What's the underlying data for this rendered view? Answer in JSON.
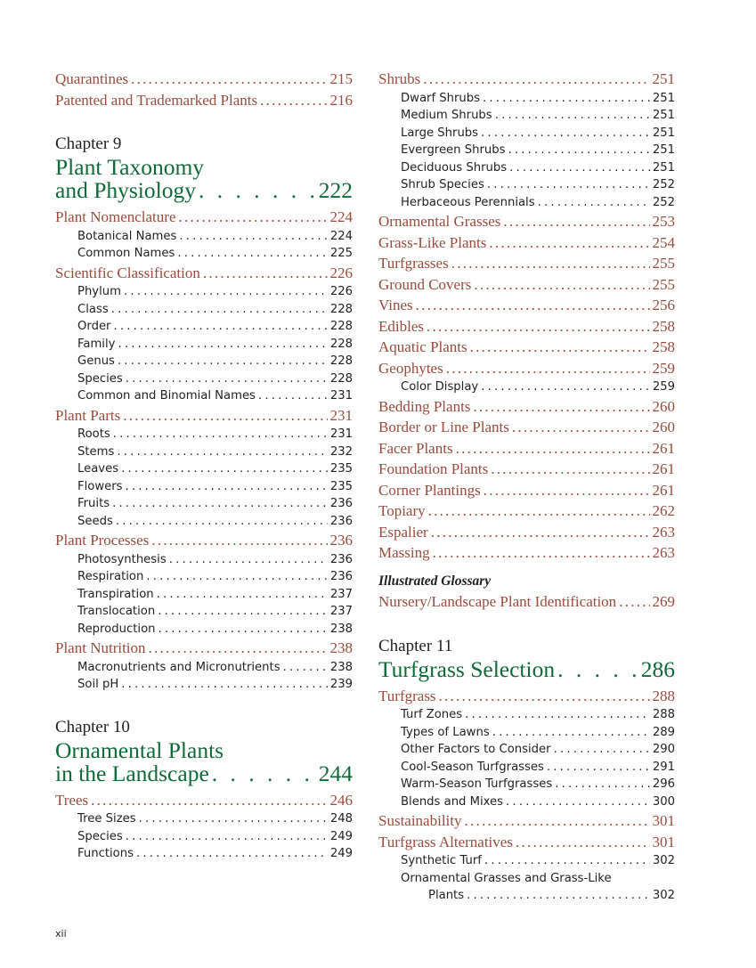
{
  "left": [
    {
      "type": "section",
      "label": "Quarantines",
      "page": "215"
    },
    {
      "type": "section",
      "label": "Patented and Trademarked Plants",
      "page": "216"
    },
    {
      "type": "chap-label",
      "label": "Chapter 9"
    },
    {
      "type": "chap-title",
      "label": "Plant Taxonomy"
    },
    {
      "type": "chap-title-last",
      "label": "and Physiology",
      "page": "222"
    },
    {
      "type": "section",
      "label": "Plant Nomenclature",
      "page": "224"
    },
    {
      "type": "sub",
      "label": "Botanical Names",
      "page": "224"
    },
    {
      "type": "sub",
      "label": "Common Names",
      "page": "225"
    },
    {
      "type": "section",
      "label": "Scientific Classification",
      "page": "226"
    },
    {
      "type": "sub",
      "label": "Phylum",
      "page": "226"
    },
    {
      "type": "sub",
      "label": "Class",
      "page": "228"
    },
    {
      "type": "sub",
      "label": "Order",
      "page": "228"
    },
    {
      "type": "sub",
      "label": "Family",
      "page": "228"
    },
    {
      "type": "sub",
      "label": "Genus",
      "page": "228"
    },
    {
      "type": "sub",
      "label": "Species",
      "page": "228"
    },
    {
      "type": "sub",
      "label": "Common and Binomial Names",
      "page": "231"
    },
    {
      "type": "section",
      "label": "Plant Parts",
      "page": "231"
    },
    {
      "type": "sub",
      "label": "Roots",
      "page": "231"
    },
    {
      "type": "sub",
      "label": "Stems",
      "page": "232"
    },
    {
      "type": "sub",
      "label": "Leaves",
      "page": "235"
    },
    {
      "type": "sub",
      "label": "Flowers",
      "page": "235"
    },
    {
      "type": "sub",
      "label": "Fruits",
      "page": "236"
    },
    {
      "type": "sub",
      "label": "Seeds",
      "page": "236"
    },
    {
      "type": "section",
      "label": "Plant Processes",
      "page": "236"
    },
    {
      "type": "sub",
      "label": "Photosynthesis",
      "page": "236"
    },
    {
      "type": "sub",
      "label": "Respiration",
      "page": "236"
    },
    {
      "type": "sub",
      "label": "Transpiration",
      "page": "237"
    },
    {
      "type": "sub",
      "label": "Translocation",
      "page": "237"
    },
    {
      "type": "sub",
      "label": "Reproduction",
      "page": "238"
    },
    {
      "type": "section",
      "label": "Plant Nutrition",
      "page": "238"
    },
    {
      "type": "sub",
      "label": "Macronutrients and Micronutrients",
      "page": "238"
    },
    {
      "type": "sub",
      "label": "Soil pH",
      "page": "239"
    },
    {
      "type": "chap-label",
      "label": "Chapter 10"
    },
    {
      "type": "chap-title",
      "label": "Ornamental Plants"
    },
    {
      "type": "chap-title-last",
      "label": "in the Landscape",
      "page": "244"
    },
    {
      "type": "section",
      "label": "Trees",
      "page": "246"
    },
    {
      "type": "sub",
      "label": "Tree Sizes",
      "page": "248"
    },
    {
      "type": "sub",
      "label": "Species",
      "page": "249"
    },
    {
      "type": "sub",
      "label": "Functions",
      "page": "249"
    }
  ],
  "right": [
    {
      "type": "section",
      "label": "Shrubs",
      "page": "251"
    },
    {
      "type": "sub",
      "label": "Dwarf Shrubs",
      "page": "251"
    },
    {
      "type": "sub",
      "label": "Medium Shrubs",
      "page": "251"
    },
    {
      "type": "sub",
      "label": "Large Shrubs",
      "page": "251"
    },
    {
      "type": "sub",
      "label": "Evergreen Shrubs",
      "page": "251"
    },
    {
      "type": "sub",
      "label": "Deciduous Shrubs",
      "page": "251"
    },
    {
      "type": "sub",
      "label": "Shrub Species",
      "page": "252"
    },
    {
      "type": "sub",
      "label": "Herbaceous Perennials",
      "page": "252"
    },
    {
      "type": "section",
      "label": "Ornamental Grasses",
      "page": "253"
    },
    {
      "type": "section",
      "label": "Grass-Like Plants",
      "page": "254"
    },
    {
      "type": "section",
      "label": "Turfgrasses",
      "page": "255"
    },
    {
      "type": "section",
      "label": "Ground Covers",
      "page": "255"
    },
    {
      "type": "section",
      "label": "Vines",
      "page": "256"
    },
    {
      "type": "section",
      "label": "Edibles",
      "page": "258"
    },
    {
      "type": "section",
      "label": "Aquatic Plants",
      "page": "258"
    },
    {
      "type": "section",
      "label": "Geophytes",
      "page": "259"
    },
    {
      "type": "sub",
      "label": "Color Display",
      "page": "259"
    },
    {
      "type": "section",
      "label": "Bedding Plants",
      "page": "260"
    },
    {
      "type": "section",
      "label": "Border or Line Plants",
      "page": "260"
    },
    {
      "type": "section",
      "label": "Facer Plants",
      "page": "261"
    },
    {
      "type": "section",
      "label": "Foundation Plants",
      "page": "261"
    },
    {
      "type": "section",
      "label": "Corner Plantings",
      "page": "261"
    },
    {
      "type": "section",
      "label": "Topiary",
      "page": "262"
    },
    {
      "type": "section",
      "label": "Espalier",
      "page": "263"
    },
    {
      "type": "section",
      "label": "Massing",
      "page": "263"
    },
    {
      "type": "italic-head",
      "label": "Illustrated Glossary"
    },
    {
      "type": "section",
      "label": "Nursery/Landscape Plant Identification",
      "page": "269"
    },
    {
      "type": "chap-label",
      "label": "Chapter 11"
    },
    {
      "type": "chap-title-last",
      "label": "Turfgrass Selection",
      "page": "286"
    },
    {
      "type": "section",
      "label": "Turfgrass",
      "page": "288"
    },
    {
      "type": "sub",
      "label": "Turf Zones",
      "page": "288"
    },
    {
      "type": "sub",
      "label": "Types of Lawns",
      "page": "289"
    },
    {
      "type": "sub",
      "label": "Other Factors to Consider",
      "page": "290"
    },
    {
      "type": "sub",
      "label": "Cool-Season Turfgrasses",
      "page": "291"
    },
    {
      "type": "sub",
      "label": "Warm-Season Turfgrasses",
      "page": "296"
    },
    {
      "type": "sub",
      "label": "Blends and Mixes",
      "page": "300"
    },
    {
      "type": "section",
      "label": "Sustainability",
      "page": "301"
    },
    {
      "type": "section",
      "label": "Turfgrass Alternatives",
      "page": "301"
    },
    {
      "type": "sub",
      "label": "Synthetic Turf",
      "page": "302"
    },
    {
      "type": "sub-nolead",
      "label": "Ornamental Grasses and Grass-Like"
    },
    {
      "type": "sub2",
      "label": "Plants",
      "page": "302"
    }
  ],
  "page_number": "xii"
}
